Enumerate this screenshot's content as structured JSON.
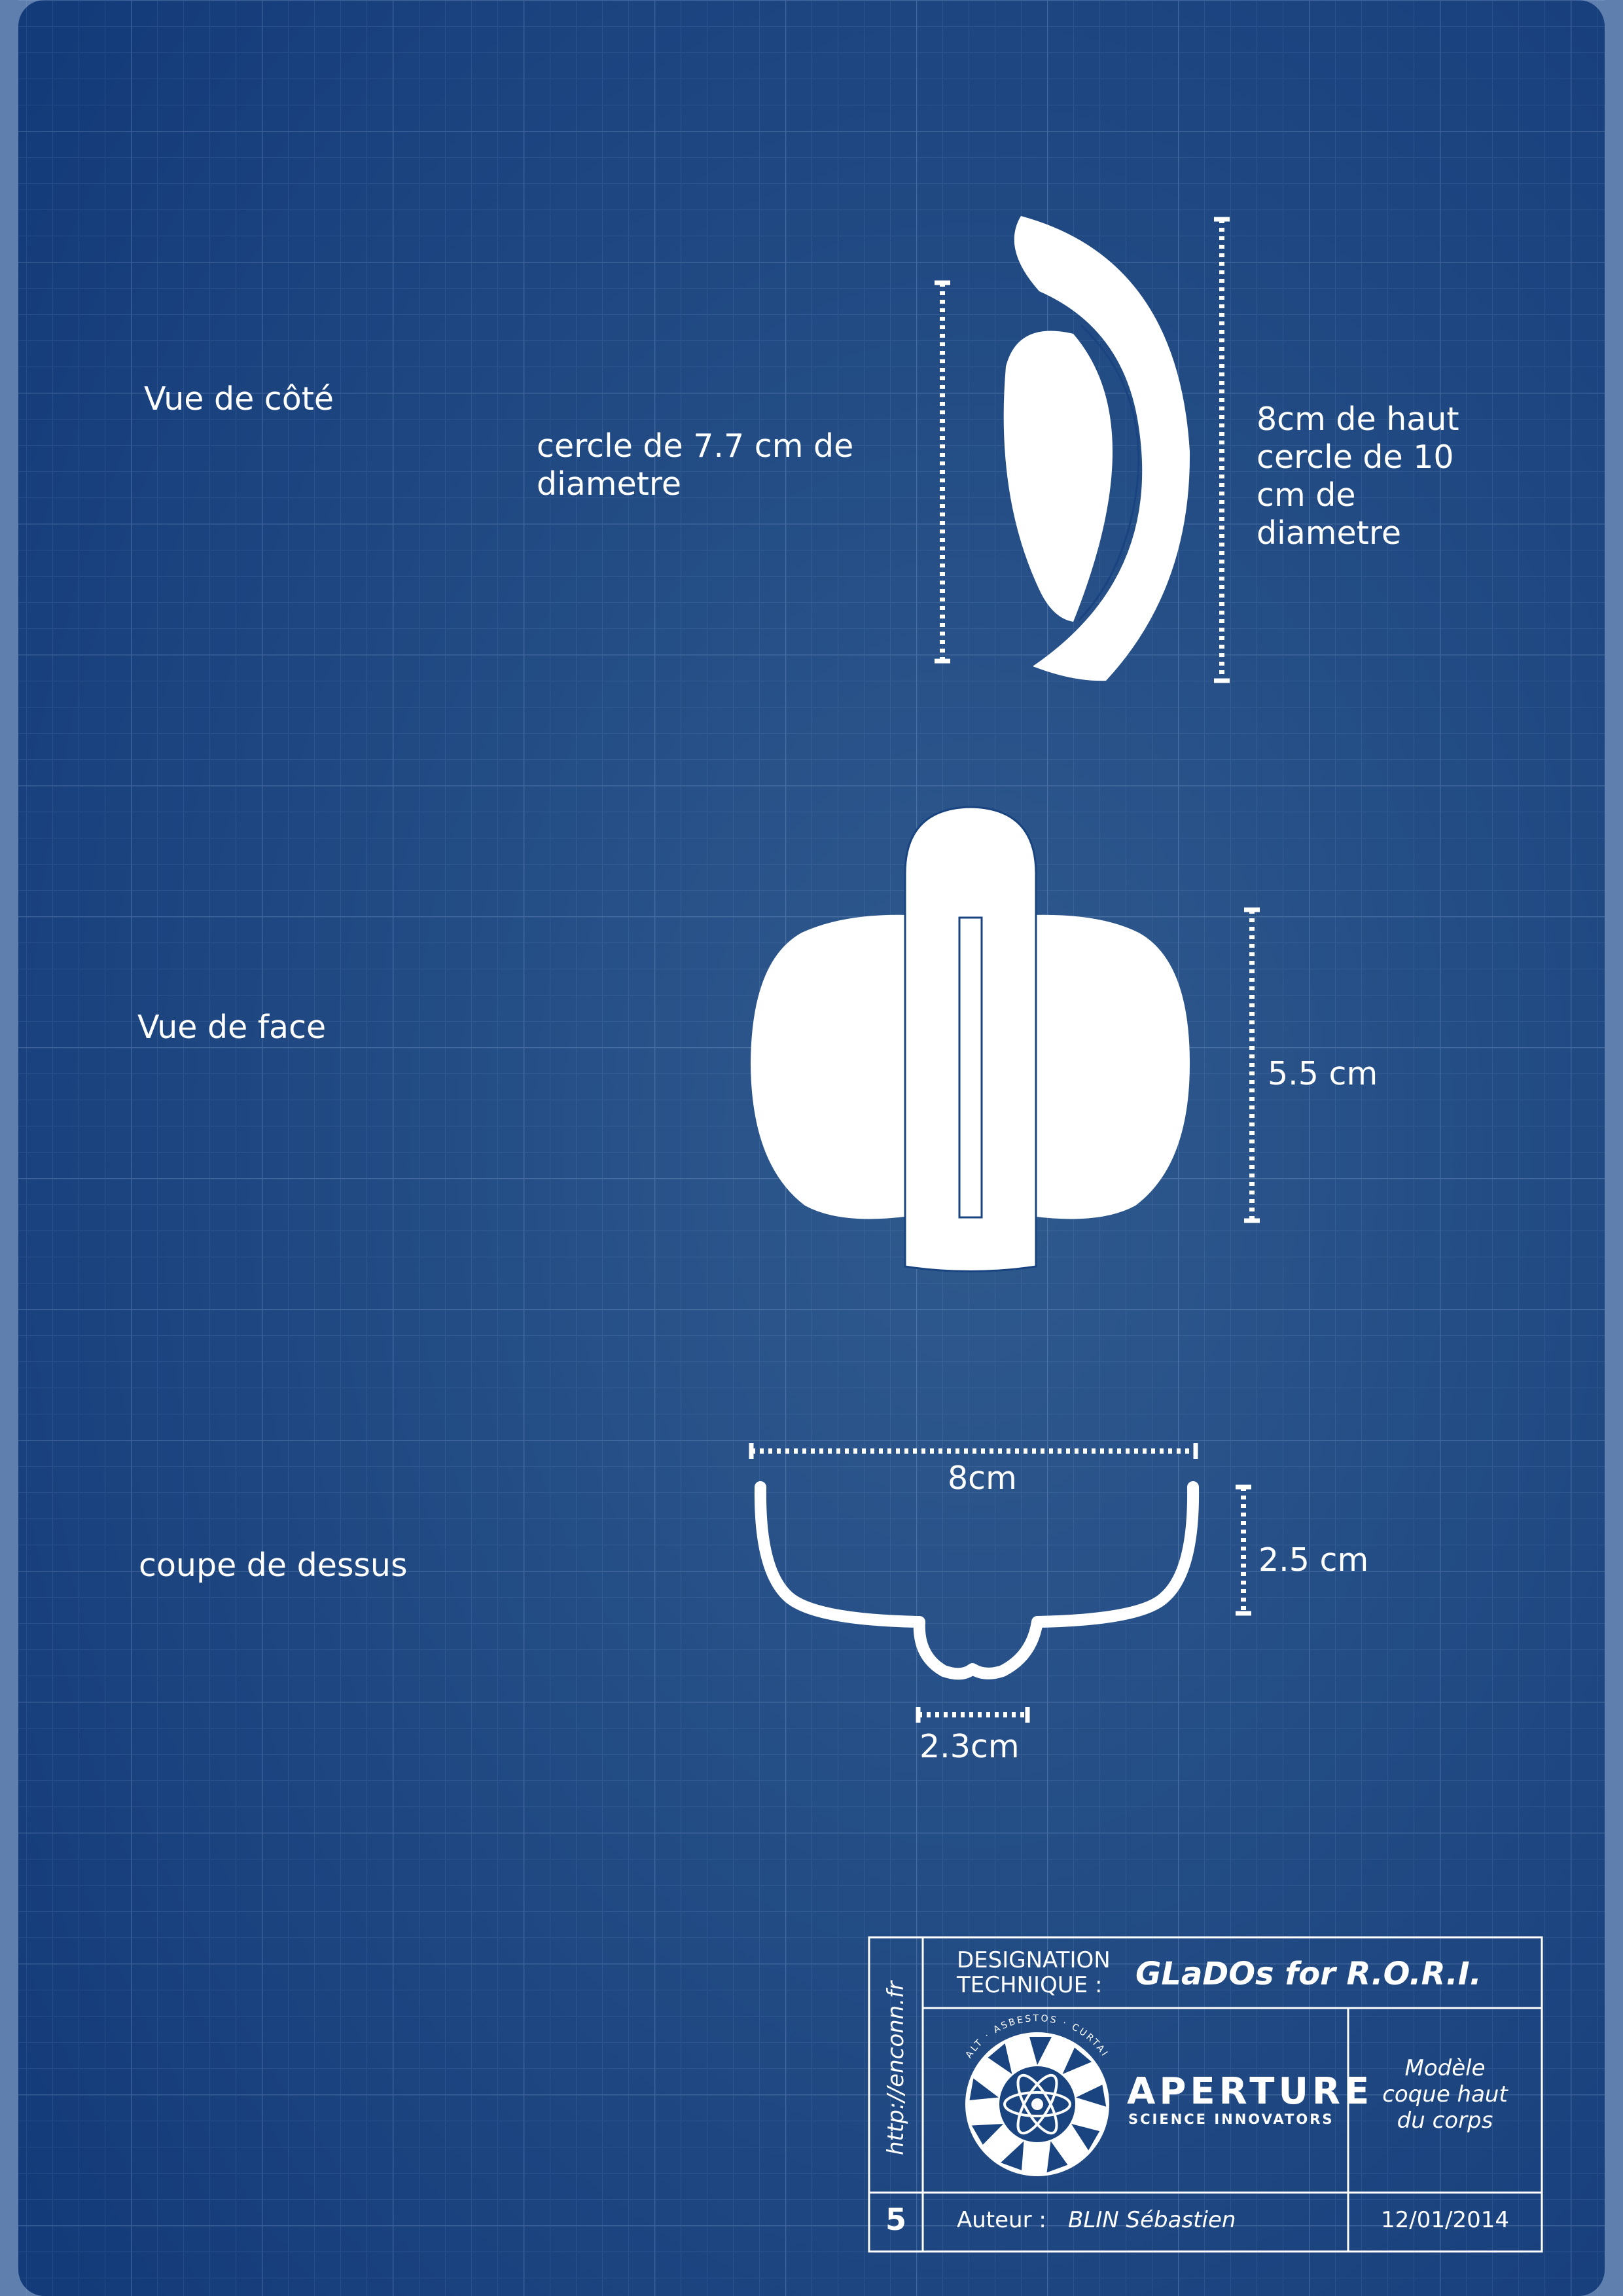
{
  "colors": {
    "frame": "#5f7fae",
    "paper_center": "#2f5a8e",
    "paper_edge": "#143b79",
    "grid": "#8fb0dc",
    "ink": "#ffffff"
  },
  "views": {
    "side": {
      "label": "Vue de côté",
      "inner_dim": "cercle de 7.7 cm de\ndiametre",
      "outer_dim": "8cm de haut\ncercle de 10\ncm de\ndiametre"
    },
    "front": {
      "label": "Vue de face",
      "height_dim": "5.5 cm"
    },
    "top": {
      "label": "coupe de dessus",
      "width_dim": "8cm",
      "depth_dim": "2.5 cm",
      "notch_dim": "2.3cm"
    }
  },
  "title_block": {
    "url": "http://enconn.fr",
    "designation_label": "DESIGNATION\nTECHNIQUE  :",
    "designation_value": "GLaDOs for R.O.R.I.",
    "logo_name": "APERTURE",
    "logo_tagline": "SCIENCE INNOVATORS",
    "logo_ring_text": "SALT · ASBESTOS · CURTAIN",
    "part_description": "Modèle\ncoque haut\ndu corps",
    "sheet_number": "5",
    "author_label": "Auteur :",
    "author_value": "BLIN Sébastien",
    "date": "12/01/2014"
  }
}
